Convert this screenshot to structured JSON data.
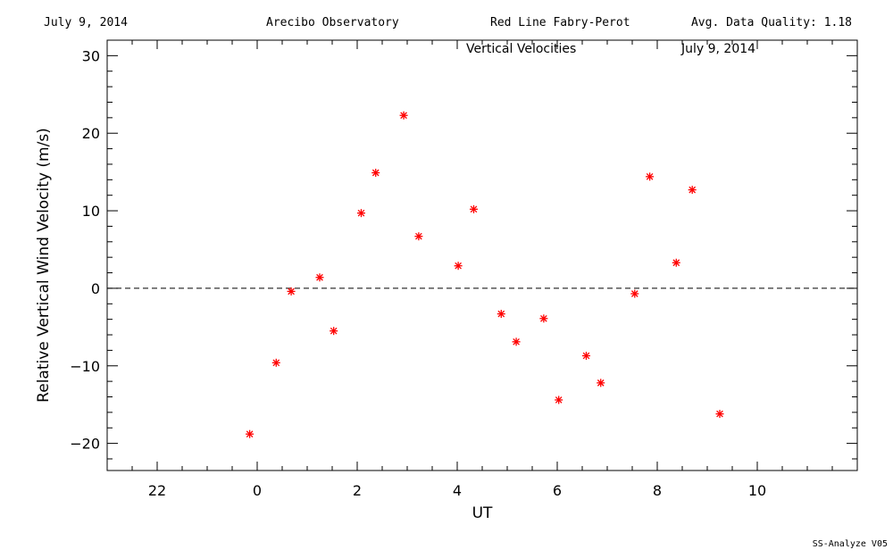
{
  "header": {
    "date": "July 9, 2014",
    "observatory": "Arecibo Observatory",
    "instrument": "Red Line Fabry-Perot",
    "quality": "Avg. Data Quality: 1.18"
  },
  "footer": "SS-Analyze V05",
  "chart_data": {
    "type": "scatter",
    "title": "Vertical Velocities",
    "subtitle": "July 9, 2014",
    "xlabel": "UT",
    "ylabel": "Relative Vertical Wind Velocity (m/s)",
    "xlim": [
      -3,
      12
    ],
    "ylim": [
      -23.5,
      32
    ],
    "x_ticks": [
      22,
      0,
      2,
      4,
      6,
      8,
      10
    ],
    "x_tick_positions": [
      -2,
      0,
      2,
      4,
      6,
      8,
      10
    ],
    "y_ticks": [
      -20,
      -10,
      0,
      10,
      20,
      30
    ],
    "reference_line": 0,
    "marker_color": "#ff0000",
    "points": [
      {
        "x": -0.15,
        "y": -18.8
      },
      {
        "x": 0.38,
        "y": -9.6
      },
      {
        "x": 0.68,
        "y": -0.4
      },
      {
        "x": 1.25,
        "y": 1.4
      },
      {
        "x": 1.53,
        "y": -5.5
      },
      {
        "x": 2.08,
        "y": 9.7
      },
      {
        "x": 2.37,
        "y": 14.9
      },
      {
        "x": 2.93,
        "y": 22.3
      },
      {
        "x": 3.23,
        "y": 6.7
      },
      {
        "x": 4.02,
        "y": 2.9
      },
      {
        "x": 4.33,
        "y": 10.2
      },
      {
        "x": 4.88,
        "y": -3.3
      },
      {
        "x": 5.18,
        "y": -6.9
      },
      {
        "x": 5.73,
        "y": -3.9
      },
      {
        "x": 6.03,
        "y": -14.4
      },
      {
        "x": 6.58,
        "y": -8.7
      },
      {
        "x": 6.87,
        "y": -12.2
      },
      {
        "x": 7.55,
        "y": -0.7
      },
      {
        "x": 7.85,
        "y": 14.4
      },
      {
        "x": 8.38,
        "y": 3.3
      },
      {
        "x": 8.7,
        "y": 12.7
      },
      {
        "x": 9.25,
        "y": -16.2
      }
    ]
  }
}
